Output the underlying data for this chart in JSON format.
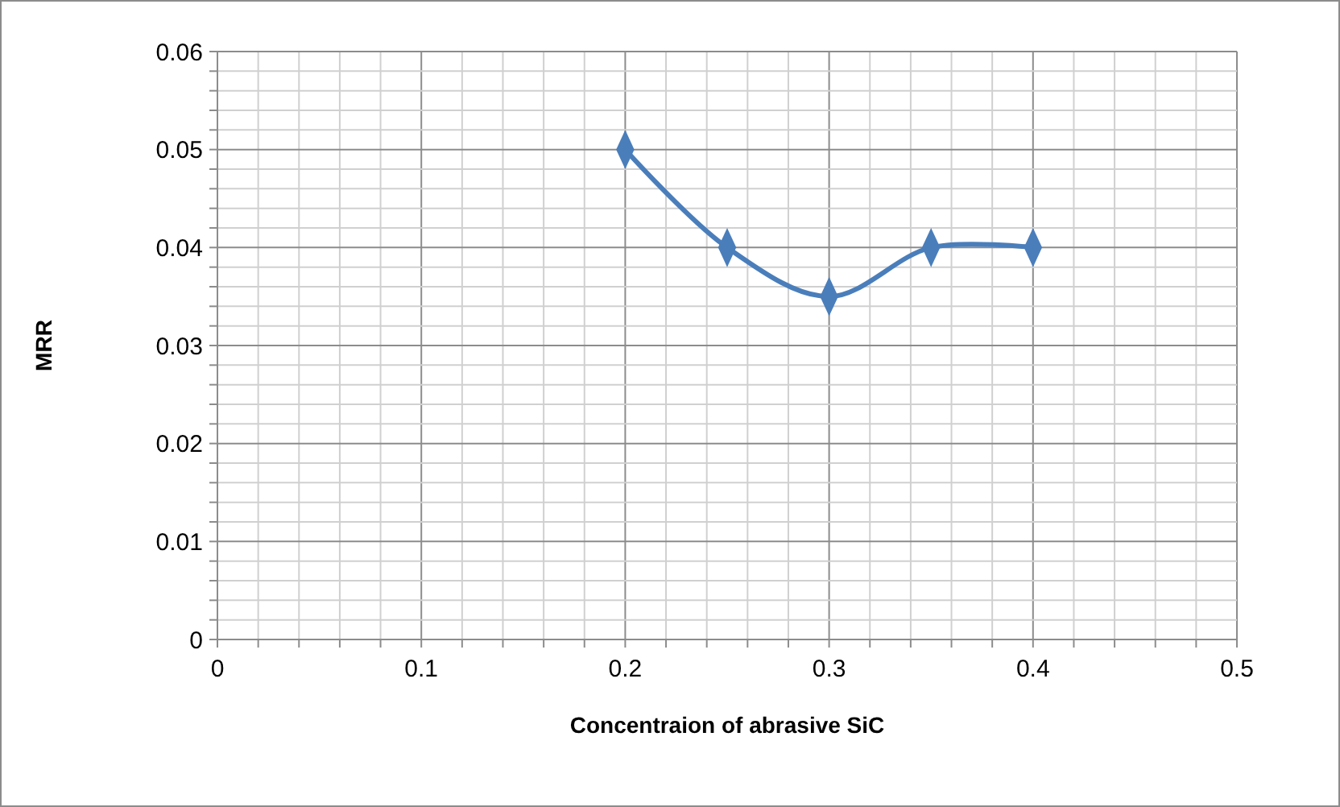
{
  "chart_data": {
    "type": "line",
    "xlabel": "Concentraion of abrasive SiC",
    "ylabel": "MRR",
    "x": [
      0.2,
      0.25,
      0.3,
      0.35,
      0.4
    ],
    "series": [
      {
        "color": "#4a7ebb",
        "values": [
          0.05,
          0.04,
          0.035,
          0.04,
          0.04
        ]
      }
    ],
    "xlim": [
      0,
      0.5
    ],
    "ylim": [
      0,
      0.06
    ],
    "xticks": [
      0,
      {
        "value": 0.02,
        "label": null
      },
      {
        "value": 0.04,
        "label": null
      },
      {
        "value": 0.06,
        "label": null
      },
      {
        "value": 0.08,
        "label": null
      },
      0.1,
      {
        "value": 0.12,
        "label": null
      },
      {
        "value": 0.14,
        "label": null
      },
      {
        "value": 0.16,
        "label": null
      },
      {
        "value": 0.18,
        "label": null
      },
      0.2,
      {
        "value": 0.22,
        "label": null
      },
      {
        "value": 0.24,
        "label": null
      },
      {
        "value": 0.26,
        "label": null
      },
      {
        "value": 0.28,
        "label": null
      },
      0.3,
      {
        "value": 0.32,
        "label": null
      },
      {
        "value": 0.34,
        "label": null
      },
      {
        "value": 0.36,
        "label": null
      },
      {
        "value": 0.38,
        "label": null
      },
      0.4,
      {
        "value": 0.42,
        "label": null
      },
      {
        "value": 0.44,
        "label": null
      },
      {
        "value": 0.46,
        "label": null
      },
      {
        "value": 0.48,
        "label": null
      },
      0.5
    ],
    "yticks": [
      0,
      {
        "value": 0.002,
        "label": null
      },
      {
        "value": 0.004,
        "label": null
      },
      {
        "value": 0.006,
        "label": null
      },
      {
        "value": 0.008,
        "label": null
      },
      0.01,
      {
        "value": 0.012,
        "label": null
      },
      {
        "value": 0.014,
        "label": null
      },
      {
        "value": 0.016,
        "label": null
      },
      {
        "value": 0.018,
        "label": null
      },
      0.02,
      {
        "value": 0.022,
        "label": null
      },
      {
        "value": 0.024,
        "label": null
      },
      {
        "value": 0.026,
        "label": null
      },
      {
        "value": 0.028,
        "label": null
      },
      0.03,
      {
        "value": 0.032,
        "label": null
      },
      {
        "value": 0.034,
        "label": null
      },
      {
        "value": 0.036,
        "label": null
      },
      {
        "value": 0.038,
        "label": null
      },
      0.04,
      {
        "value": 0.042,
        "label": null
      },
      {
        "value": 0.044,
        "label": null
      },
      {
        "value": 0.046,
        "label": null
      },
      {
        "value": 0.048,
        "label": null
      },
      0.05,
      {
        "value": 0.052,
        "label": null
      },
      {
        "value": 0.054,
        "label": null
      },
      {
        "value": 0.056,
        "label": null
      },
      {
        "value": 0.058,
        "label": null
      },
      0.06
    ],
    "grid": true,
    "marker": "diamond",
    "line_style": "solid"
  }
}
